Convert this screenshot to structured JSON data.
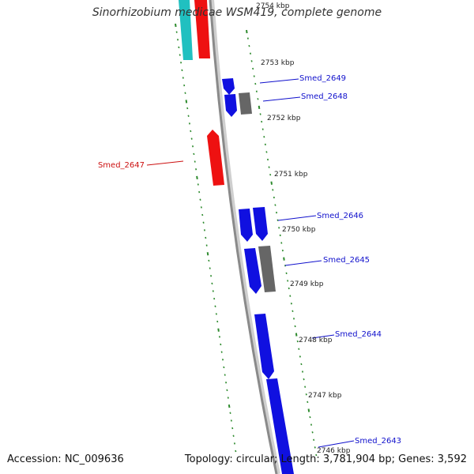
{
  "title": "Sinorhizobium medicae WSM419, complete genome",
  "footer": {
    "accession": "Accession: NC_009636",
    "summary": "Topology: circular; Length: 3,781,904 bp; Genes: 3,592"
  },
  "colors": {
    "background": "#ffffff",
    "backbone": "#8a8a8a",
    "tick": "#2e8b2e",
    "forward_gene": "#1010e0",
    "reverse_gene": "#ee1111",
    "grey_gene": "#666666",
    "cyan_gene": "#20c0c0",
    "forward_label": "#1010cc",
    "reverse_label": "#cc1010"
  },
  "kbp_labels": [
    "2754 kbp",
    "2753 kbp",
    "2752 kbp",
    "2751 kbp",
    "2750 kbp",
    "2749 kbp",
    "2748 kbp",
    "2747 kbp",
    "2746 kbp"
  ],
  "gene_labels": [
    {
      "name": "Smed_2649",
      "strand": "forward"
    },
    {
      "name": "Smed_2648",
      "strand": "forward"
    },
    {
      "name": "Smed_2647",
      "strand": "reverse"
    },
    {
      "name": "Smed_2646",
      "strand": "forward"
    },
    {
      "name": "Smed_2645",
      "strand": "forward"
    },
    {
      "name": "Smed_2644",
      "strand": "forward"
    },
    {
      "name": "Smed_2643",
      "strand": "forward"
    }
  ]
}
